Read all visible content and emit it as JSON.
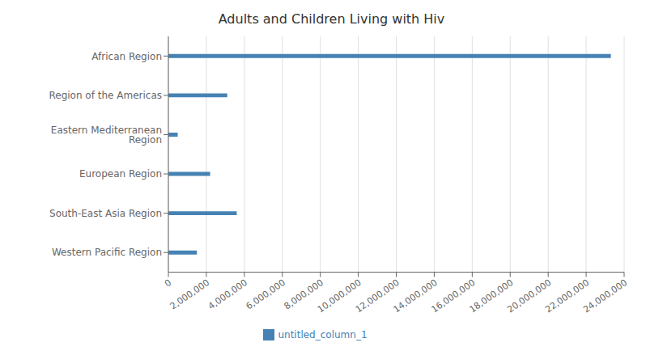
{
  "chart_data": {
    "type": "bar",
    "orientation": "horizontal",
    "title": "Adults and Children Living with Hiv",
    "categories": [
      "African Region",
      "Region of the Americas",
      "Eastern Mediterranean Region",
      "European Region",
      "South-East Asia Region",
      "Western Pacific Region"
    ],
    "series": [
      {
        "name": "untitled_column_1",
        "color": "#4682b4",
        "values": [
          23300000,
          3100000,
          490000,
          2200000,
          3600000,
          1500000
        ]
      }
    ],
    "xlim": [
      0,
      24000000
    ],
    "xticks": [
      0,
      {
        "value": 2000000,
        "label": "2,000,000"
      },
      {
        "value": 4000000,
        "label": "4,000,000"
      },
      {
        "value": 6000000,
        "label": "6,000,000"
      },
      {
        "value": 8000000,
        "label": "8,000,000"
      },
      {
        "value": 10000000,
        "label": "10,000,000"
      },
      {
        "value": 12000000,
        "label": "12,000,000"
      },
      {
        "value": 14000000,
        "label": "14,000,000"
      },
      {
        "value": 16000000,
        "label": "16,000,000"
      },
      {
        "value": 18000000,
        "label": "18,000,000"
      },
      {
        "value": 20000000,
        "label": "20,000,000"
      },
      {
        "value": 22000000,
        "label": "22,000,000"
      },
      {
        "value": 24000000,
        "label": "24,000,000"
      }
    ],
    "grid": true,
    "legend": "bottom"
  }
}
